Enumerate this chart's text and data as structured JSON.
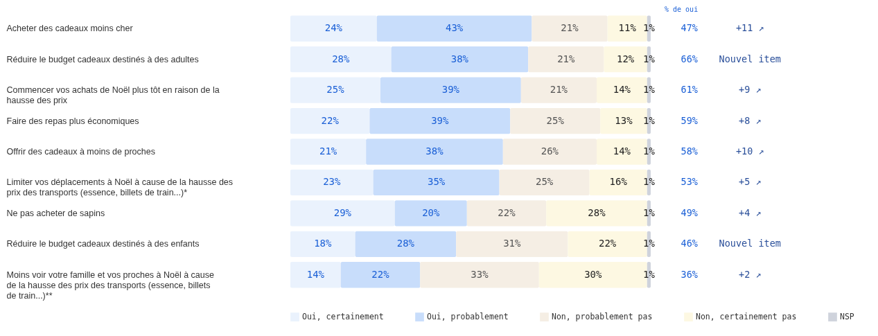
{
  "chart_data": {
    "type": "bar",
    "orientation": "horizontal",
    "stacked": true,
    "legend": "bottom",
    "tick_labels": "y",
    "categories": [
      "Acheter des cadeaux moins cher",
      "Réduire le budget cadeaux destinés à des adultes",
      "Commencer vos achats de Noël plus tôt en raison de la hausse des prix",
      "Faire des repas plus économiques",
      "Offrir des cadeaux à moins de proches",
      "Limiter vos déplacements à Noël à cause de la hausse des prix des transports (essence, billets de train...)*",
      "Ne pas acheter de sapins",
      "Réduire le budget cadeaux destinés à des enfants",
      "Moins voir votre famille et vos proches à Noël à cause de la hausse des prix des transports (essence, billets de train...)**"
    ],
    "series": [
      {
        "name": "Oui, certainement",
        "color": "#eaf2fd",
        "values": [
          24,
          28,
          25,
          22,
          21,
          23,
          29,
          18,
          14
        ],
        "value_labels": [
          "24%",
          "28%",
          "25%",
          "22%",
          "21%",
          "23%",
          "29%",
          "18%",
          "14%"
        ]
      },
      {
        "name": "Oui, probablement",
        "color": "#c8ddfb",
        "values": [
          43,
          38,
          39,
          39,
          38,
          35,
          20,
          28,
          22
        ],
        "value_labels": [
          "43%",
          "38%",
          "39%",
          "39%",
          "38%",
          "35%",
          "20%",
          "28%",
          "22%"
        ]
      },
      {
        "name": "Non, probablement pas",
        "color": "#f5eee4",
        "values": [
          21,
          21,
          21,
          25,
          26,
          25,
          22,
          31,
          33
        ],
        "value_labels": [
          "21%",
          "21%",
          "21%",
          "25%",
          "26%",
          "25%",
          "22%",
          "31%",
          "33%"
        ]
      },
      {
        "name": "Non, certainement pas",
        "color": "#fdf8e2",
        "values": [
          11,
          12,
          14,
          13,
          14,
          16,
          28,
          22,
          30
        ],
        "value_labels": [
          "11%",
          "12%",
          "14%",
          "13%",
          "14%",
          "16%",
          "28%",
          "22%",
          "30%"
        ]
      },
      {
        "name": "NSP",
        "color": "#cfd3dc",
        "values": [
          1,
          1,
          1,
          1,
          1,
          1,
          1,
          1,
          1
        ],
        "value_labels": [
          "1%",
          "1%",
          "1%",
          "1%",
          "1%",
          "1%",
          "1%",
          "1%",
          "1%"
        ]
      }
    ],
    "annotations": [
      "% de oui",
      "47%",
      "66%",
      "61%",
      "59%",
      "58%",
      "53%",
      "49%",
      "46%",
      "36%",
      "+11 ↗",
      "Nouvel item",
      "+9 ↗",
      "+8 ↗",
      "+10 ↗",
      "+5 ↗",
      "+4 ↗",
      "Nouvel item",
      "+2 ↗"
    ]
  }
}
